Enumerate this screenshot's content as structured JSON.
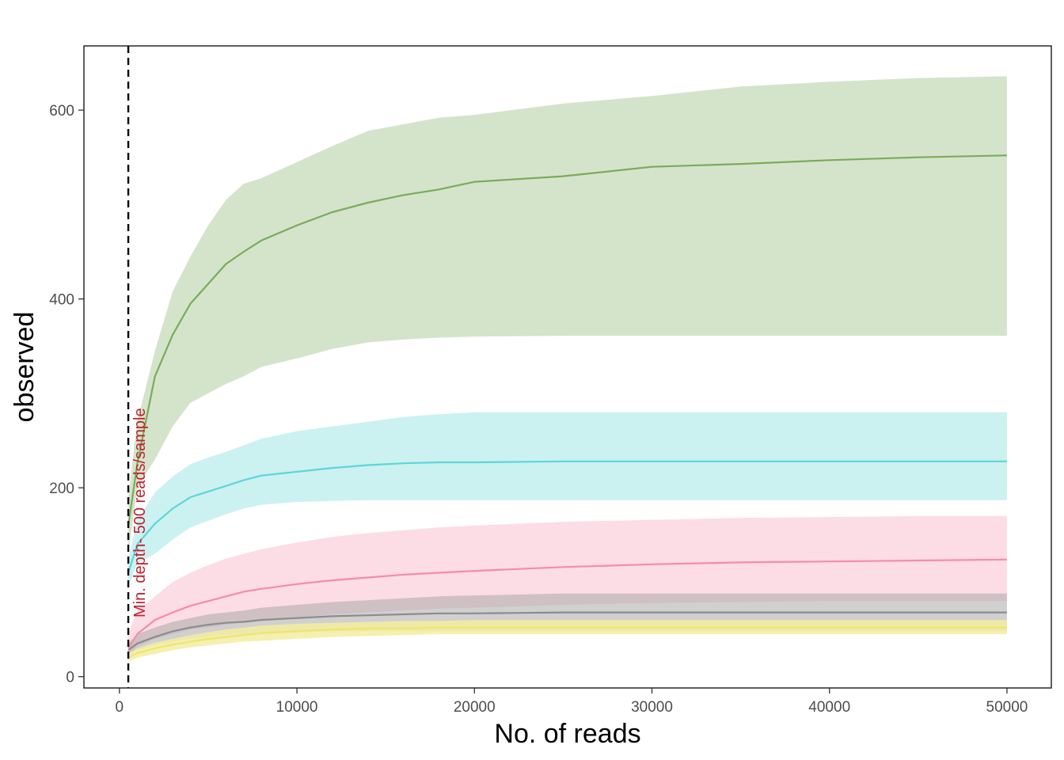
{
  "chart_data": {
    "type": "area",
    "xlabel": "No. of reads",
    "ylabel": "observed",
    "xlim": [
      -2000,
      52500
    ],
    "ylim": [
      -12,
      668
    ],
    "x_ticks": [
      0,
      10000,
      20000,
      30000,
      40000,
      50000
    ],
    "x_tick_labels": [
      "0",
      "10000",
      "20000",
      "30000",
      "40000",
      "50000"
    ],
    "y_ticks": [
      0,
      200,
      400,
      600
    ],
    "y_tick_labels": [
      "0",
      "200",
      "400",
      "600"
    ],
    "grid": false,
    "legend": "none",
    "annotation": {
      "text": "Min. depth- 500 reads/sample",
      "x": 500,
      "color": "#c0202e",
      "line_style": "dashed"
    },
    "series": [
      {
        "color": "#7aab5a",
        "band_color": "#cddfc2",
        "x": [
          500,
          1000,
          2000,
          3000,
          4000,
          5000,
          6000,
          7000,
          8000,
          10000,
          12000,
          14000,
          16000,
          18000,
          20000,
          25000,
          30000,
          35000,
          40000,
          45000,
          50000
        ],
        "mean": [
          160,
          225,
          318,
          362,
          395,
          416,
          437,
          450,
          462,
          478,
          492,
          502,
          510,
          516,
          524,
          530,
          540,
          543,
          547,
          550,
          552
        ],
        "lower": [
          130,
          200,
          230,
          265,
          290,
          300,
          310,
          318,
          328,
          337,
          347,
          354,
          357,
          359,
          360,
          361,
          361,
          361,
          361,
          361,
          361
        ],
        "upper": [
          190,
          270,
          345,
          408,
          445,
          478,
          505,
          522,
          528,
          545,
          562,
          578,
          585,
          592,
          595,
          607,
          615,
          625,
          630,
          634,
          636
        ]
      },
      {
        "color": "#5dd6d8",
        "band_color": "#c3efef",
        "x": [
          500,
          1000,
          2000,
          3000,
          4000,
          5000,
          6000,
          7000,
          8000,
          10000,
          12000,
          14000,
          16000,
          18000,
          20000,
          25000,
          30000,
          35000,
          40000,
          45000,
          50000
        ],
        "mean": [
          110,
          140,
          162,
          178,
          190,
          196,
          202,
          208,
          213,
          217,
          221,
          224,
          226,
          227,
          227,
          228,
          228,
          228,
          228,
          228,
          228
        ],
        "lower": [
          95,
          120,
          130,
          145,
          158,
          165,
          172,
          178,
          182,
          185,
          186,
          187,
          187,
          187,
          187,
          187,
          187,
          187,
          187,
          187,
          187
        ],
        "upper": [
          125,
          165,
          195,
          212,
          225,
          232,
          238,
          245,
          252,
          260,
          265,
          270,
          275,
          278,
          280,
          280,
          280,
          280,
          280,
          280,
          280
        ]
      },
      {
        "color": "#f48cab",
        "band_color": "#fcd6e0",
        "x": [
          500,
          1000,
          2000,
          3000,
          4000,
          5000,
          6000,
          7000,
          8000,
          10000,
          12000,
          14000,
          16000,
          18000,
          20000,
          25000,
          30000,
          35000,
          40000,
          45000,
          50000
        ],
        "mean": [
          30,
          45,
          60,
          68,
          75,
          80,
          85,
          90,
          93,
          98,
          102,
          105,
          108,
          110,
          112,
          116,
          119,
          121,
          122,
          123,
          124
        ],
        "lower": [
          20,
          32,
          40,
          45,
          50,
          52,
          55,
          58,
          60,
          63,
          66,
          68,
          70,
          72,
          73,
          76,
          78,
          79,
          80,
          80,
          80
        ],
        "upper": [
          45,
          70,
          85,
          100,
          110,
          118,
          125,
          130,
          135,
          142,
          148,
          152,
          155,
          158,
          160,
          164,
          166,
          168,
          169,
          170,
          170
        ]
      },
      {
        "color": "#8c8c8c",
        "band_color": "#a9a9a9",
        "x": [
          500,
          1000,
          2000,
          3000,
          4000,
          5000,
          6000,
          7000,
          8000,
          10000,
          12000,
          14000,
          16000,
          18000,
          20000,
          25000,
          30000,
          35000,
          40000,
          45000,
          50000
        ],
        "mean": [
          28,
          35,
          42,
          48,
          52,
          55,
          57,
          58,
          60,
          62,
          64,
          65,
          66,
          67,
          67,
          68,
          68,
          68,
          68,
          68,
          68
        ],
        "lower": [
          22,
          28,
          33,
          37,
          40,
          42,
          44,
          45,
          46,
          47,
          48,
          48,
          48,
          48,
          48,
          48,
          48,
          48,
          48,
          48,
          48
        ],
        "upper": [
          35,
          45,
          52,
          58,
          62,
          66,
          68,
          70,
          73,
          76,
          79,
          81,
          83,
          85,
          86,
          88,
          88,
          88,
          88,
          88,
          88
        ]
      },
      {
        "color": "#ece66f",
        "band_color": "#f3eda0",
        "x": [
          500,
          1000,
          2000,
          3000,
          4000,
          5000,
          6000,
          7000,
          8000,
          10000,
          12000,
          14000,
          16000,
          18000,
          20000,
          25000,
          30000,
          35000,
          40000,
          45000,
          50000
        ],
        "mean": [
          20,
          25,
          30,
          34,
          37,
          40,
          42,
          44,
          46,
          48,
          50,
          51,
          51,
          52,
          52,
          52,
          52,
          52,
          52,
          52,
          52
        ],
        "lower": [
          16,
          20,
          24,
          28,
          31,
          33,
          35,
          37,
          38,
          40,
          42,
          43,
          44,
          45,
          45,
          45,
          45,
          45,
          45,
          45,
          45
        ],
        "upper": [
          25,
          30,
          36,
          40,
          44,
          47,
          50,
          52,
          54,
          56,
          57,
          58,
          59,
          59,
          60,
          60,
          60,
          60,
          60,
          60,
          60
        ]
      }
    ]
  }
}
